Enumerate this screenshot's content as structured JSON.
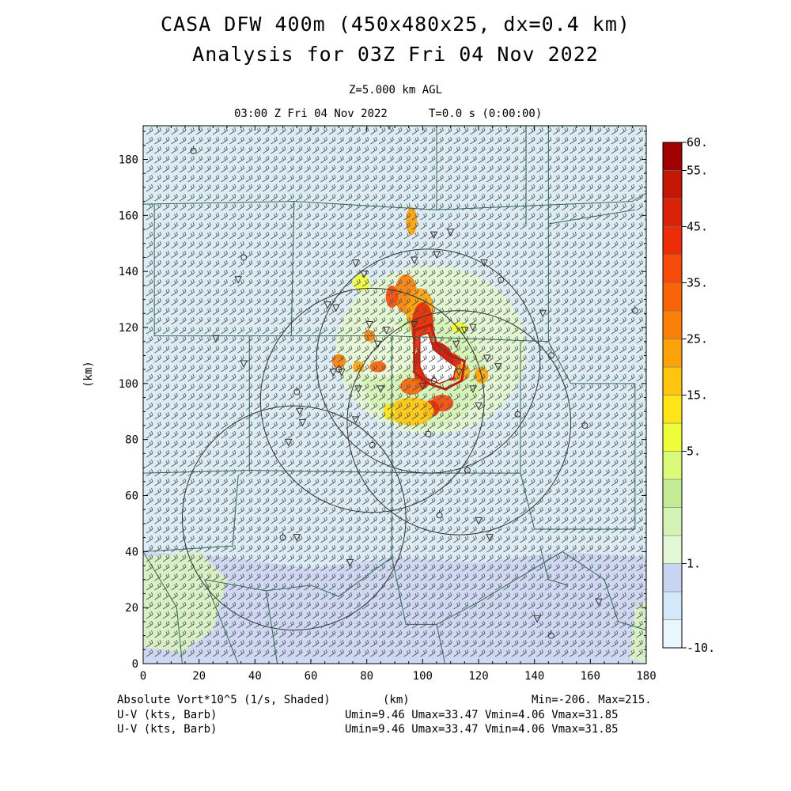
{
  "header": {
    "title_line1": "CASA DFW 400m (450x480x25, dx=0.4 km)",
    "title_line2": "Analysis for 03Z Fri 04 Nov 2022",
    "level": "Z=5.000 km AGL",
    "valid_time": "03:00 Z Fri 04 Nov 2022",
    "elapsed": "T=0.0 s (0:00:00)"
  },
  "axes": {
    "x_ticks": [
      "0",
      "20",
      "40",
      "60",
      "80",
      "100",
      "120",
      "140",
      "160",
      "180"
    ],
    "y_ticks": [
      "0",
      "20",
      "40",
      "60",
      "80",
      "100",
      "120",
      "140",
      "160",
      "180"
    ],
    "x_unit": "(km)",
    "y_unit": "(km)",
    "range_km": [
      0,
      180
    ],
    "y_range_km": [
      0,
      192
    ]
  },
  "colorbar": {
    "labels": [
      "60.",
      "55.",
      "45.",
      "35.",
      "25.",
      "15.",
      "5.",
      "1.",
      "-10."
    ],
    "colors": [
      "#e9f7fc",
      "#d3e8f8",
      "#c9d3f2",
      "#e5f8d5",
      "#d5f3b5",
      "#c3ec95",
      "#dcfa7a",
      "#eefc3a",
      "#ffe419",
      "#ffc50f",
      "#fca30c",
      "#fb800a",
      "#f96409",
      "#f84a0b",
      "#ed2d07",
      "#d9220a",
      "#c51505",
      "#a00000"
    ]
  },
  "legend": {
    "field_label": "Absolute Vort*10^5 (1/s, Shaded)",
    "unit_label": "(km)",
    "minmax": "Min=-206. Max=215.",
    "wind_label_1": "U-V (kts, Barb)",
    "wind_stats_1": "Umin=9.46 Umax=33.47 Vmin=4.06 Vmax=31.85",
    "wind_label_2": "U-V (kts, Barb)",
    "wind_stats_2": "Umin=9.46 Umax=33.47 Vmin=4.06 Vmax=31.85"
  },
  "colors": {
    "background_field": "#dcecf4",
    "county_lines": "#2e6b4e",
    "barbs": "#555555",
    "range_rings": "#333333",
    "strong_core": "#c41a0a"
  },
  "map_features": {
    "radar_rings_km": [
      {
        "cx": 102,
        "cy": 108,
        "r": 40
      },
      {
        "cx": 82,
        "cy": 94,
        "r": 40
      },
      {
        "cx": 113,
        "cy": 86,
        "r": 40
      },
      {
        "cx": 54,
        "cy": 52,
        "r": 40
      }
    ]
  }
}
